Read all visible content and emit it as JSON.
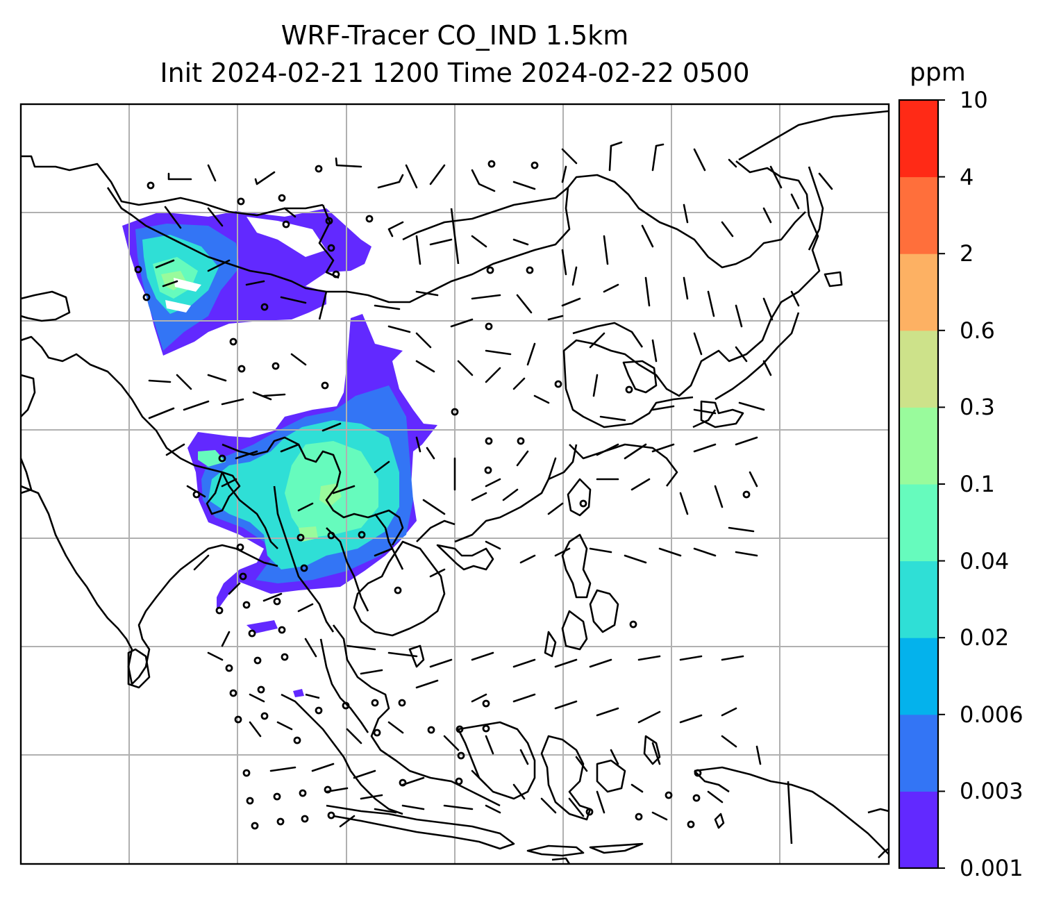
{
  "title": {
    "line1": "WRF-Tracer CO_IND 1.5km",
    "line2": "Init 2024-02-21 1200 Time 2024-02-22 0500"
  },
  "colorbar": {
    "unit": "ppm",
    "levels": [
      "0.001",
      "0.003",
      "0.006",
      "0.02",
      "0.04",
      "0.1",
      "0.3",
      "0.6",
      "2",
      "4",
      "10"
    ],
    "colors": [
      "#6229ff",
      "#3375f5",
      "#04b2ec",
      "#2fdfd6",
      "#66fbbd",
      "#99fb9c",
      "#cde28a",
      "#fdb163",
      "#ff6f3b",
      "#ff2a16"
    ]
  },
  "map": {
    "variable": "CO_IND tracer concentration at 1.5km",
    "overlays": [
      "coastlines",
      "country-borders",
      "lat-lon-gridlines",
      "wind-barbs"
    ],
    "gridline_color": "#b0b0b0",
    "tracer_colors": [
      "#6229ff",
      "#3375f5",
      "#2fdfd6",
      "#66fbbd",
      "#99fb9c"
    ]
  }
}
